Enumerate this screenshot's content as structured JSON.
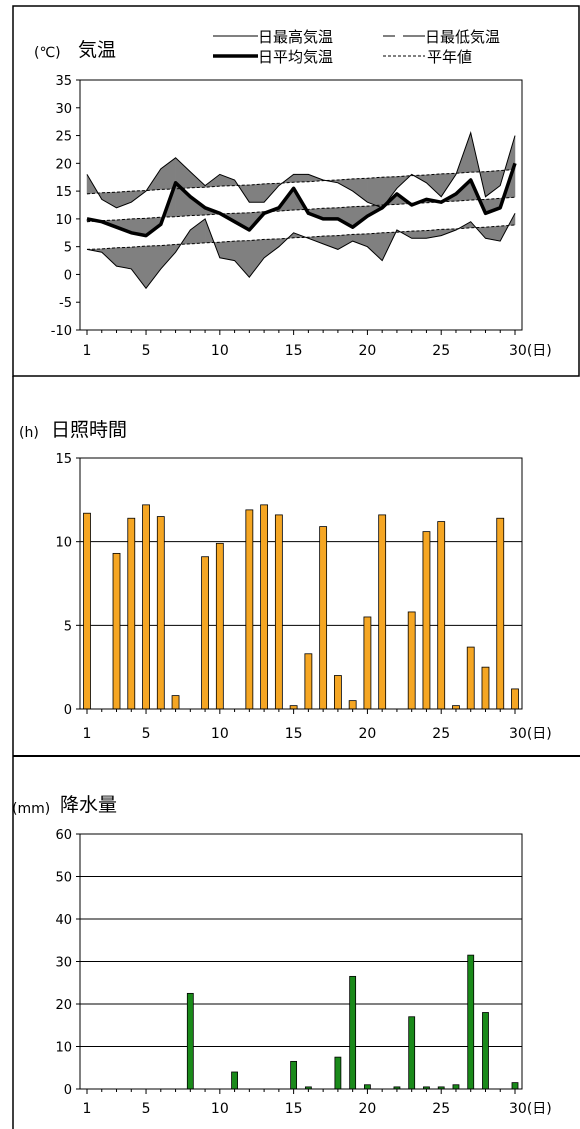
{
  "chart_data": [
    {
      "type": "line",
      "unit_label": "(℃)",
      "title": "気温",
      "x": [
        1,
        2,
        3,
        4,
        5,
        6,
        7,
        8,
        9,
        10,
        11,
        12,
        13,
        14,
        15,
        16,
        17,
        18,
        19,
        20,
        21,
        22,
        23,
        24,
        25,
        26,
        27,
        28,
        29,
        30
      ],
      "x_ticks": [
        "1",
        "5",
        "10",
        "15",
        "20",
        "25",
        "30(日)"
      ],
      "y_ticks": [
        "35",
        "30",
        "25",
        "20",
        "15",
        "10",
        "5",
        "0",
        "-5",
        "-10"
      ],
      "ylim": [
        -10,
        35
      ],
      "legend": [
        {
          "name": "日最高気温",
          "style": "thin-solid"
        },
        {
          "name": "日最低気温",
          "style": "thin-dash"
        },
        {
          "name": "日平均気温",
          "style": "thick-solid"
        },
        {
          "name": "平年値",
          "style": "dotted"
        }
      ],
      "series": [
        {
          "name": "日最高気温",
          "values": [
            18,
            13.5,
            12,
            13,
            15,
            19,
            21,
            18.5,
            16,
            18,
            17,
            13,
            13,
            16,
            18,
            18,
            17,
            16.5,
            15,
            13,
            12,
            15.5,
            18,
            16.5,
            14,
            18,
            25.5,
            14,
            16,
            25
          ]
        },
        {
          "name": "日最低気温",
          "values": [
            4.5,
            4,
            1.5,
            1,
            -2.5,
            1,
            4,
            8,
            10,
            3,
            2.5,
            -0.5,
            3,
            5,
            7.5,
            6.5,
            5.5,
            4.5,
            6,
            5,
            2.5,
            8,
            6.5,
            6.5,
            7,
            8,
            9.5,
            6.5,
            6,
            11
          ]
        },
        {
          "name": "日平均気温",
          "values": [
            10,
            9.5,
            8.5,
            7.5,
            7,
            9,
            16.5,
            14,
            12,
            11,
            9.5,
            8,
            11,
            12,
            15.5,
            11,
            10,
            10,
            8.5,
            10.5,
            12,
            14.5,
            12.5,
            13.5,
            13,
            14.5,
            17,
            11,
            12,
            20
          ]
        },
        {
          "name": "平年値 (最高)",
          "values": [
            14.5,
            14.7,
            14.8,
            15,
            15.1,
            15.3,
            15.4,
            15.6,
            15.7,
            15.9,
            16,
            16.1,
            16.3,
            16.4,
            16.6,
            16.7,
            16.9,
            17,
            17.2,
            17.3,
            17.5,
            17.6,
            17.8,
            17.9,
            18.1,
            18.2,
            18.4,
            18.5,
            18.7,
            18.9
          ]
        },
        {
          "name": "平年値 (平均)",
          "values": [
            9.5,
            9.7,
            9.8,
            10,
            10.1,
            10.3,
            10.4,
            10.6,
            10.7,
            10.9,
            11,
            11.1,
            11.3,
            11.4,
            11.6,
            11.7,
            11.9,
            12,
            12.2,
            12.3,
            12.5,
            12.6,
            12.8,
            12.9,
            13.1,
            13.2,
            13.4,
            13.5,
            13.7,
            13.9
          ]
        },
        {
          "name": "平年値 (最低)",
          "values": [
            4.5,
            4.6,
            4.8,
            4.9,
            5.1,
            5.2,
            5.4,
            5.5,
            5.7,
            5.8,
            6,
            6.1,
            6.3,
            6.4,
            6.6,
            6.7,
            6.9,
            7,
            7.2,
            7.3,
            7.5,
            7.6,
            7.8,
            7.9,
            8.1,
            8.2,
            8.4,
            8.5,
            8.7,
            8.9
          ]
        }
      ]
    },
    {
      "type": "bar",
      "unit_label": "(h)",
      "title": "日照時間",
      "categories": [
        1,
        2,
        3,
        4,
        5,
        6,
        7,
        8,
        9,
        10,
        11,
        12,
        13,
        14,
        15,
        16,
        17,
        18,
        19,
        20,
        21,
        22,
        23,
        24,
        25,
        26,
        27,
        28,
        29,
        30
      ],
      "x_ticks": [
        "1",
        "5",
        "10",
        "15",
        "20",
        "25",
        "30(日)"
      ],
      "y_ticks": [
        "15",
        "10",
        "5",
        "0"
      ],
      "ylim": [
        0,
        15
      ],
      "grid": true,
      "color": "#f5a623",
      "values": [
        11.7,
        0,
        9.3,
        11.4,
        12.2,
        11.5,
        0.8,
        0,
        9.1,
        9.9,
        0,
        11.9,
        12.2,
        11.6,
        0.2,
        3.3,
        10.9,
        2,
        0.5,
        5.5,
        11.6,
        0,
        5.8,
        10.6,
        11.2,
        0.2,
        3.7,
        2.5,
        11.4,
        1.2
      ]
    },
    {
      "type": "bar",
      "unit_label": "(mm)",
      "title": "降水量",
      "categories": [
        1,
        2,
        3,
        4,
        5,
        6,
        7,
        8,
        9,
        10,
        11,
        12,
        13,
        14,
        15,
        16,
        17,
        18,
        19,
        20,
        21,
        22,
        23,
        24,
        25,
        26,
        27,
        28,
        29,
        30
      ],
      "x_ticks": [
        "1",
        "5",
        "10",
        "15",
        "20",
        "25",
        "30(日)"
      ],
      "y_ticks": [
        "60",
        "50",
        "40",
        "30",
        "20",
        "10",
        "0"
      ],
      "ylim": [
        0,
        60
      ],
      "grid": true,
      "color": "#1a8a1a",
      "values": [
        0,
        0,
        0,
        0,
        0,
        0,
        0,
        22.5,
        0,
        0,
        4,
        0,
        0,
        0,
        6.5,
        0.5,
        0,
        7.5,
        26.5,
        1,
        0,
        0.5,
        17,
        0.5,
        0.5,
        1,
        31.5,
        18,
        0,
        1.5
      ]
    }
  ]
}
